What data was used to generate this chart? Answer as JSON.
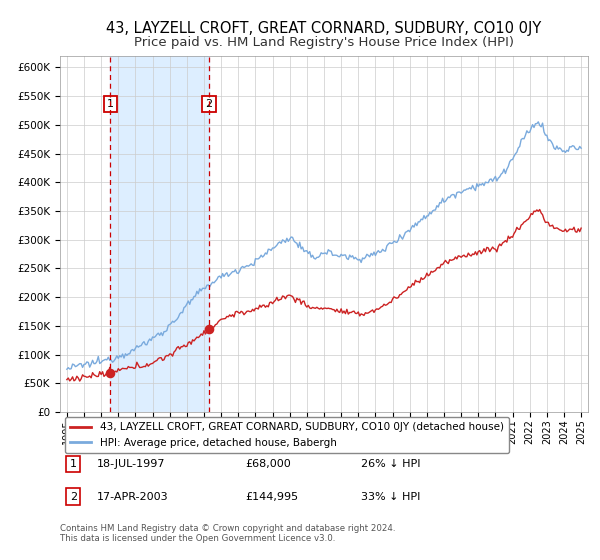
{
  "title": "43, LAYZELL CROFT, GREAT CORNARD, SUDBURY, CO10 0JY",
  "subtitle": "Price paid vs. HM Land Registry's House Price Index (HPI)",
  "yticks": [
    0,
    50000,
    100000,
    150000,
    200000,
    250000,
    300000,
    350000,
    400000,
    450000,
    500000,
    550000,
    600000
  ],
  "ytick_labels": [
    "£0",
    "£50K",
    "£100K",
    "£150K",
    "£200K",
    "£250K",
    "£300K",
    "£350K",
    "£400K",
    "£450K",
    "£500K",
    "£550K",
    "£600K"
  ],
  "xlim_start": 1994.6,
  "xlim_end": 2025.4,
  "ylim_min": 0,
  "ylim_max": 620000,
  "sale1_year": 1997.54,
  "sale1_price": 68000,
  "sale1_label": "1",
  "sale1_date": "18-JUL-1997",
  "sale1_amount": "£68,000",
  "sale1_hpi": "26% ↓ HPI",
  "sale2_year": 2003.29,
  "sale2_price": 144995,
  "sale2_label": "2",
  "sale2_date": "17-APR-2003",
  "sale2_amount": "£144,995",
  "sale2_hpi": "33% ↓ HPI",
  "hpi_color": "#7aaadd",
  "price_color": "#cc2222",
  "sale_dot_color": "#cc2222",
  "vline_color": "#cc0000",
  "shade_color": "#ddeeff",
  "legend_line1": "43, LAYZELL CROFT, GREAT CORNARD, SUDBURY, CO10 0JY (detached house)",
  "legend_line2": "HPI: Average price, detached house, Babergh",
  "footer": "Contains HM Land Registry data © Crown copyright and database right 2024.\nThis data is licensed under the Open Government Licence v3.0.",
  "title_fontsize": 10.5,
  "subtitle_fontsize": 9.5,
  "xtick_years": [
    1995,
    1996,
    1997,
    1998,
    1999,
    2000,
    2001,
    2002,
    2003,
    2004,
    2005,
    2006,
    2007,
    2008,
    2009,
    2010,
    2011,
    2012,
    2013,
    2014,
    2015,
    2016,
    2017,
    2018,
    2019,
    2020,
    2021,
    2022,
    2023,
    2024,
    2025
  ]
}
